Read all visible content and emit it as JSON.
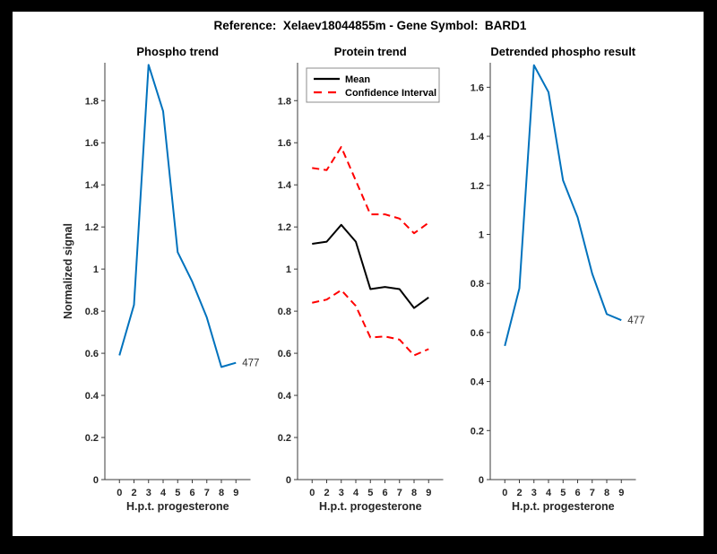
{
  "figure": {
    "title": "Reference:  Xelaev18044855m - Gene Symbol:  BARD1",
    "background": "#ffffff",
    "frame_color": "#000000"
  },
  "colors": {
    "line_blue": "#0072BD",
    "line_black": "#000000",
    "line_red": "#ff0000",
    "axis": "#3b3b3b",
    "tick_text": "#262626"
  },
  "chart_data": [
    {
      "type": "line",
      "title": "Phospho trend",
      "xlabel": "H.p.t. progesterone",
      "ylabel": "Normalized signal",
      "x_ticklabels": [
        "0",
        "2",
        "3",
        "4",
        "5",
        "6",
        "7",
        "8",
        "9"
      ],
      "y_ticklabels": [
        "0",
        "0.2",
        "0.4",
        "0.6",
        "0.8",
        "1",
        "1.2",
        "1.4",
        "1.6",
        "1.8"
      ],
      "ylim": [
        0,
        1.98
      ],
      "grid": false,
      "legend": null,
      "series": [
        {
          "name": "Phospho trend",
          "color": "#0072BD",
          "style": "solid",
          "values": [
            0.59,
            0.83,
            1.97,
            1.75,
            1.08,
            0.94,
            0.77,
            0.535,
            0.555
          ]
        }
      ],
      "end_label": "477"
    },
    {
      "type": "line",
      "title": "Protein trend",
      "xlabel": "H.p.t. progesterone",
      "ylabel": "",
      "x_ticklabels": [
        "0",
        "2",
        "3",
        "4",
        "5",
        "6",
        "7",
        "8",
        "9"
      ],
      "y_ticklabels": [
        "0",
        "0.2",
        "0.4",
        "0.6",
        "0.8",
        "1",
        "1.2",
        "1.4",
        "1.6",
        "1.8"
      ],
      "ylim": [
        0,
        1.98
      ],
      "grid": false,
      "legend": {
        "position": "upper-left",
        "entries": [
          {
            "label": "Mean",
            "series": 0
          },
          {
            "label": "Confidence Interval",
            "series": 1
          }
        ]
      },
      "series": [
        {
          "name": "Mean",
          "color": "#000000",
          "style": "solid",
          "values": [
            1.12,
            1.13,
            1.21,
            1.13,
            0.905,
            0.915,
            0.905,
            0.815,
            0.865
          ]
        },
        {
          "name": "Confidence Interval upper",
          "color": "#ff0000",
          "style": "dashed",
          "values": [
            1.48,
            1.47,
            1.58,
            1.42,
            1.26,
            1.26,
            1.24,
            1.17,
            1.22
          ]
        },
        {
          "name": "Confidence Interval lower",
          "color": "#ff0000",
          "style": "dashed",
          "values": [
            0.84,
            0.855,
            0.9,
            0.825,
            0.675,
            0.68,
            0.665,
            0.59,
            0.62
          ]
        }
      ],
      "end_label": null
    },
    {
      "type": "line",
      "title": "Detrended phospho result",
      "xlabel": "H.p.t. progesterone",
      "ylabel": "",
      "x_ticklabels": [
        "0",
        "2",
        "3",
        "4",
        "5",
        "6",
        "7",
        "8",
        "9"
      ],
      "y_ticklabels": [
        "0",
        "0.2",
        "0.4",
        "0.6",
        "0.8",
        "1",
        "1.2",
        "1.4",
        "1.6"
      ],
      "ylim": [
        0,
        1.7
      ],
      "grid": false,
      "legend": null,
      "series": [
        {
          "name": "Detrended phospho",
          "color": "#0072BD",
          "style": "solid",
          "values": [
            0.545,
            0.78,
            1.69,
            1.58,
            1.22,
            1.07,
            0.84,
            0.675,
            0.65
          ]
        }
      ],
      "end_label": "477"
    }
  ]
}
